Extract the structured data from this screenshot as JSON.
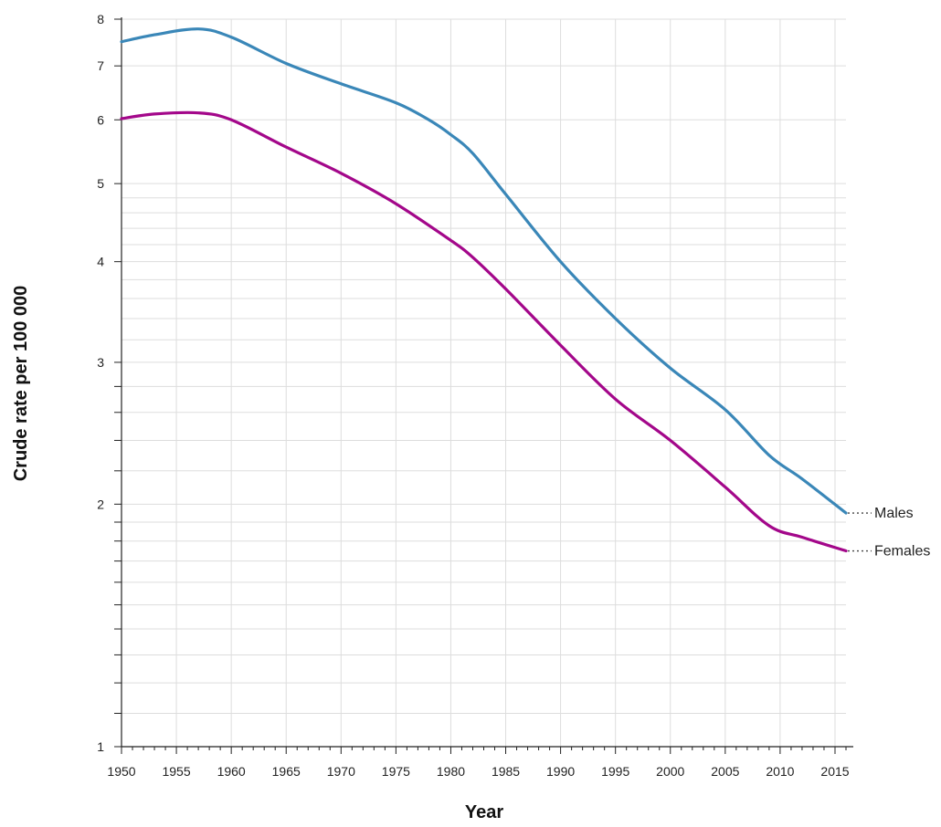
{
  "chart_data": {
    "type": "line",
    "xlabel": "Year",
    "ylabel": "Crude rate per 100 000",
    "yscale": "log",
    "xlim": [
      1950,
      2016
    ],
    "ylim": [
      1,
      8
    ],
    "x_ticks": [
      "1950",
      "1955",
      "1960",
      "1965",
      "1970",
      "1975",
      "1980",
      "1985",
      "1990",
      "1995",
      "2000",
      "2005",
      "2010",
      "2015"
    ],
    "y_ticks": [
      "1",
      "2",
      "3",
      "4",
      "5",
      "6",
      "7",
      "8"
    ],
    "grid": true,
    "legend": "direct labels at line ends (right)",
    "series": [
      {
        "name": "Males",
        "color": "#3a87b8",
        "x": [
          1950,
          1953,
          1957,
          1960,
          1965,
          1970,
          1975,
          1978,
          1980,
          1982,
          1985,
          1990,
          1995,
          2000,
          2005,
          2009,
          2012,
          2016
        ],
        "values": [
          7.5,
          7.65,
          7.78,
          7.6,
          7.05,
          6.65,
          6.3,
          6.0,
          5.75,
          5.45,
          4.85,
          4.0,
          3.4,
          2.95,
          2.62,
          2.3,
          2.15,
          1.95
        ]
      },
      {
        "name": "Females",
        "color": "#a3078a",
        "x": [
          1950,
          1953,
          1957,
          1960,
          1965,
          1970,
          1975,
          1980,
          1982,
          1985,
          1990,
          1995,
          2000,
          2005,
          2009,
          2012,
          2016
        ],
        "values": [
          6.02,
          6.1,
          6.12,
          6.0,
          5.55,
          5.15,
          4.72,
          4.25,
          4.05,
          3.7,
          3.15,
          2.7,
          2.4,
          2.1,
          1.88,
          1.82,
          1.75
        ]
      }
    ]
  }
}
